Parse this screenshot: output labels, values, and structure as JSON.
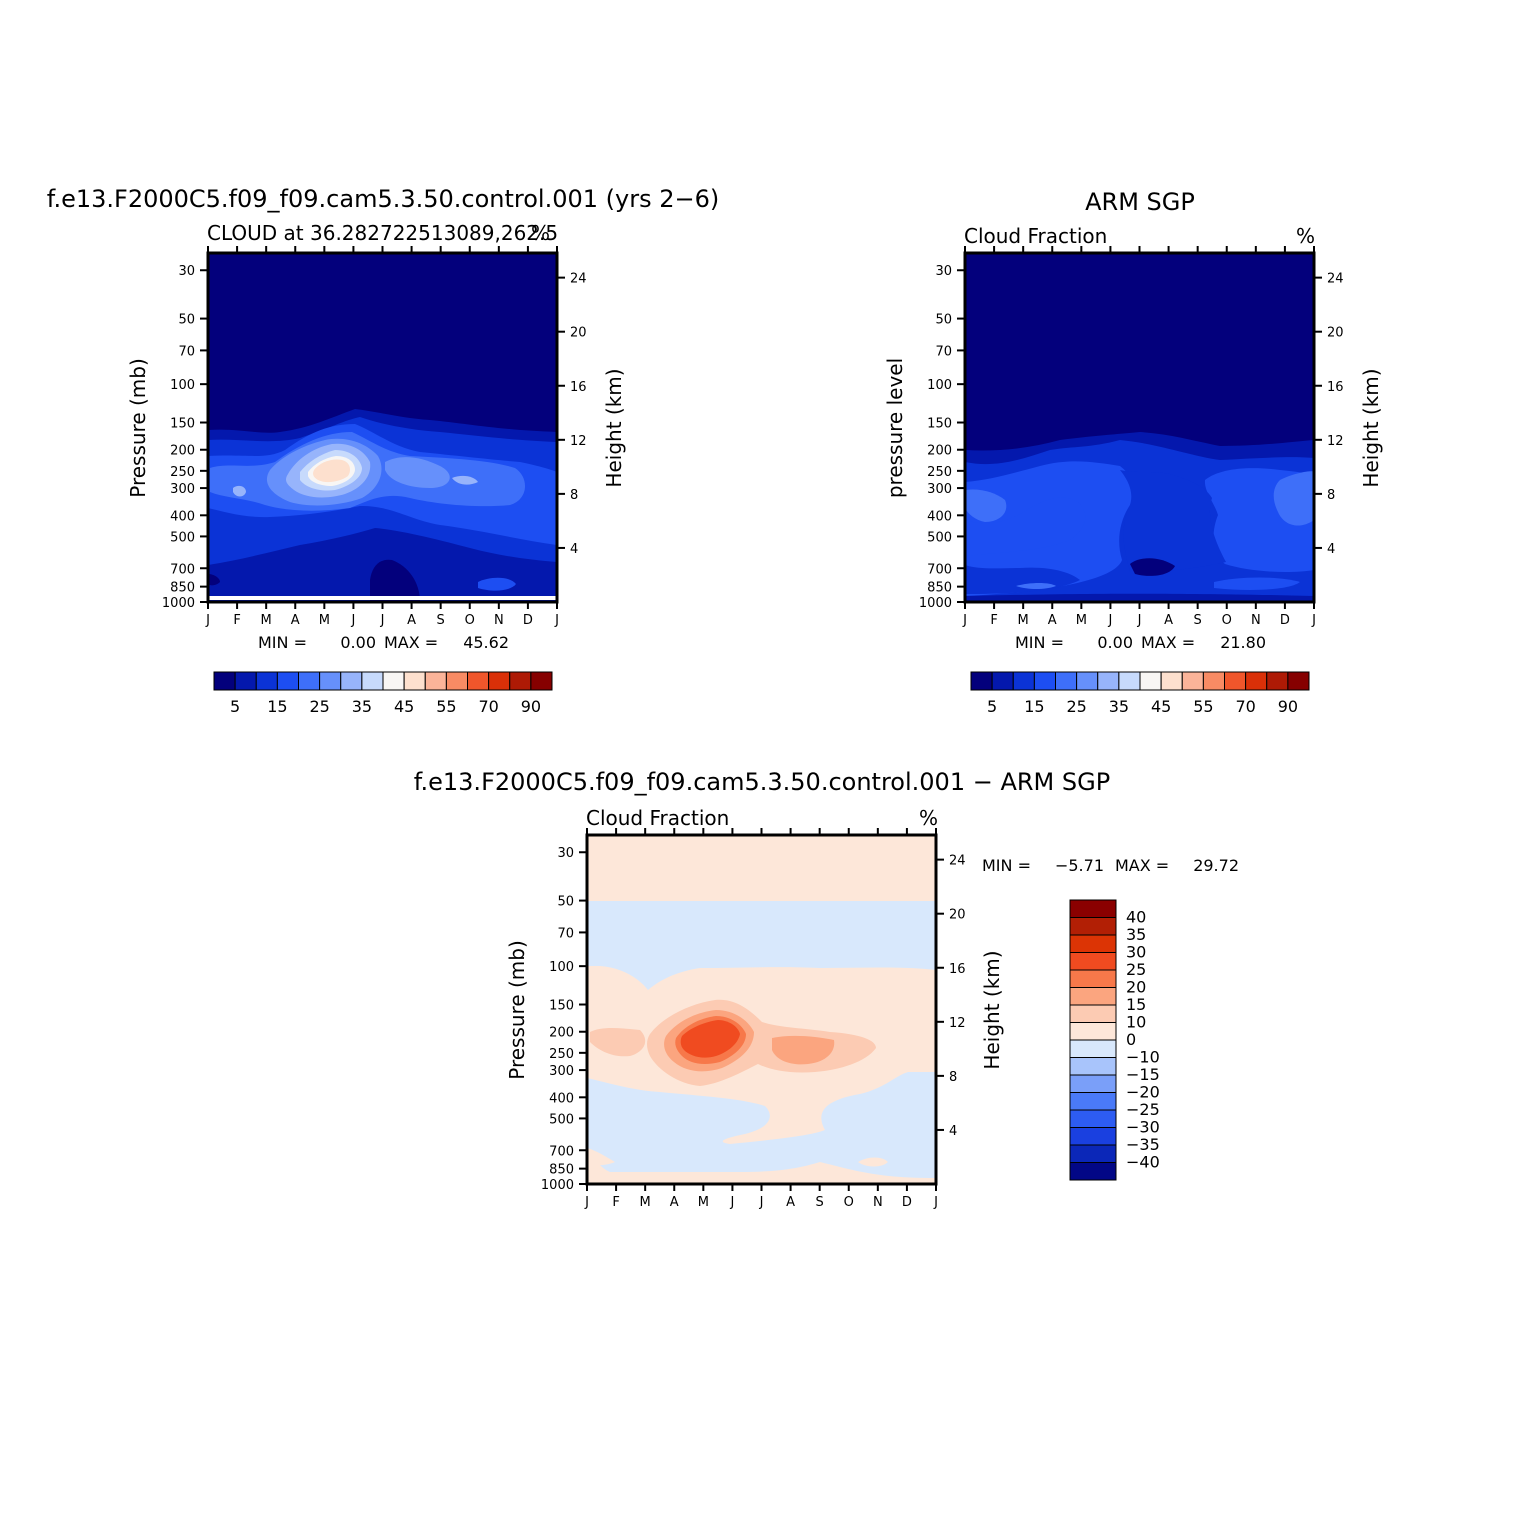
{
  "chart_data": [
    {
      "type": "heatmap",
      "id": "model",
      "title": "f.e13.F2000C5.f09_f09.cam5.3.50.control.001 (yrs 2−6)",
      "left_subtitle": "CLOUD at 36.282722513089,262.5",
      "right_subtitle": "%",
      "ylabel": "Pressure (mb)",
      "y2label": "Height (km)",
      "x_ticks": [
        "J",
        "F",
        "M",
        "A",
        "M",
        "J",
        "J",
        "A",
        "S",
        "O",
        "N",
        "D",
        "J"
      ],
      "y_ticks": [
        30,
        50,
        70,
        100,
        150,
        200,
        250,
        300,
        400,
        500,
        700,
        850,
        1000
      ],
      "y2_ticks": [
        24,
        20,
        16,
        12,
        8,
        4
      ],
      "ylim": [
        1000,
        25
      ],
      "min_label": "MIN =",
      "min_value": "0.00",
      "max_label": "MAX =",
      "max_value": "45.62",
      "colorbar": {
        "orientation": "horizontal",
        "colors": [
          "#03007c",
          "#0418ad",
          "#0b33d6",
          "#1d4ef2",
          "#3e6ff9",
          "#6690fb",
          "#97b4fb",
          "#c7dafc",
          "#f8f6f4",
          "#fde0ce",
          "#fbb499",
          "#f88b64",
          "#f0562b",
          "#da3008",
          "#ae1a05",
          "#860000"
        ],
        "tick_labels": [
          "5",
          "15",
          "25",
          "35",
          "45",
          "55",
          "70",
          "90"
        ]
      }
    },
    {
      "type": "heatmap",
      "id": "obs",
      "title": "ARM SGP",
      "left_subtitle": "Cloud Fraction",
      "right_subtitle": "%",
      "ylabel": "pressure level",
      "y2label": "Height (km)",
      "x_ticks": [
        "J",
        "F",
        "M",
        "A",
        "M",
        "J",
        "J",
        "A",
        "S",
        "O",
        "N",
        "D",
        "J"
      ],
      "y_ticks": [
        30,
        50,
        70,
        100,
        150,
        200,
        250,
        300,
        400,
        500,
        700,
        850,
        1000
      ],
      "y2_ticks": [
        24,
        20,
        16,
        12,
        8,
        4
      ],
      "ylim": [
        1000,
        25
      ],
      "min_label": "MIN =",
      "min_value": "0.00",
      "max_label": "MAX =",
      "max_value": "21.80",
      "colorbar": {
        "orientation": "horizontal",
        "colors": [
          "#03007c",
          "#0418ad",
          "#0b33d6",
          "#1d4ef2",
          "#3e6ff9",
          "#6690fb",
          "#97b4fb",
          "#c7dafc",
          "#f8f6f4",
          "#fde0ce",
          "#fbb499",
          "#f88b64",
          "#f0562b",
          "#da3008",
          "#ae1a05",
          "#860000"
        ],
        "tick_labels": [
          "5",
          "15",
          "25",
          "35",
          "45",
          "55",
          "70",
          "90"
        ]
      }
    },
    {
      "type": "heatmap",
      "id": "diff",
      "title": "f.e13.F2000C5.f09_f09.cam5.3.50.control.001 − ARM SGP",
      "left_subtitle": "Cloud Fraction",
      "right_subtitle": "%",
      "ylabel": "Pressure (mb)",
      "y2label": "Height (km)",
      "x_ticks": [
        "J",
        "F",
        "M",
        "A",
        "M",
        "J",
        "J",
        "A",
        "S",
        "O",
        "N",
        "D",
        "J"
      ],
      "y_ticks": [
        30,
        50,
        70,
        100,
        150,
        200,
        250,
        300,
        400,
        500,
        700,
        850,
        1000
      ],
      "y2_ticks": [
        24,
        20,
        16,
        12,
        8,
        4
      ],
      "ylim": [
        1000,
        25
      ],
      "min_label": "MIN =",
      "min_value": "−5.71",
      "max_label": "MAX =",
      "max_value": "29.72",
      "colorbar": {
        "orientation": "vertical",
        "colors_bottom_to_top": [
          "#020786",
          "#0b27b8",
          "#1a40e0",
          "#2d5cf2",
          "#4a7af8",
          "#7a9ff9",
          "#a8c4fb",
          "#d8e8fc",
          "#fde7d9",
          "#fccbb3",
          "#fba57f",
          "#f7784a",
          "#f04b20",
          "#dc3405",
          "#b21f05",
          "#8a0000"
        ],
        "tick_labels_top_to_bottom": [
          "40",
          "35",
          "30",
          "25",
          "20",
          "15",
          "10",
          "0",
          "−10",
          "−15",
          "−20",
          "−25",
          "−30",
          "−35",
          "−40"
        ]
      }
    }
  ]
}
